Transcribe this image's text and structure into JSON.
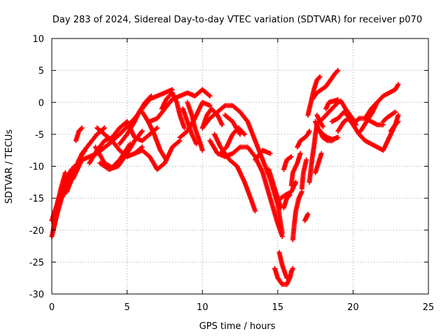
{
  "chart_data": {
    "type": "scatter",
    "title": "Day 283 of 2024, Sidereal Day-to-day VTEC variation (SDTVAR) for receiver p070",
    "xlabel": "GPS time / hours",
    "ylabel": "SDTVAR / TECUs",
    "xlim": [
      0,
      25
    ],
    "ylim": [
      -30,
      10
    ],
    "xticks": [
      0,
      5,
      10,
      15,
      20,
      25
    ],
    "yticks": [
      -30,
      -25,
      -20,
      -15,
      -10,
      -5,
      0,
      5,
      10
    ],
    "grid": true,
    "marker": "plus",
    "color": "#ff0000",
    "tracks": [
      [
        [
          0.0,
          -18.5
        ],
        [
          0.2,
          -17.0
        ],
        [
          0.5,
          -15.0
        ],
        [
          0.9,
          -12.5
        ],
        [
          1.3,
          -10.5
        ]
      ],
      [
        [
          0.0,
          -21.0
        ],
        [
          0.3,
          -18.0
        ],
        [
          0.7,
          -14.5
        ],
        [
          1.1,
          -12.0
        ],
        [
          1.5,
          -10.0
        ]
      ],
      [
        [
          0.1,
          -20.0
        ],
        [
          0.3,
          -16.5
        ],
        [
          0.6,
          -13.5
        ],
        [
          0.9,
          -11.0
        ]
      ],
      [
        [
          0.2,
          -19.0
        ],
        [
          0.4,
          -15.5
        ],
        [
          0.8,
          -13.0
        ],
        [
          1.2,
          -11.5
        ],
        [
          1.6,
          -10.5
        ]
      ],
      [
        [
          0.4,
          -16.0
        ],
        [
          0.9,
          -14.0
        ],
        [
          1.3,
          -12.0
        ],
        [
          1.8,
          -9.0
        ],
        [
          2.2,
          -7.5
        ]
      ],
      [
        [
          1.0,
          -14.0
        ],
        [
          1.5,
          -11.0
        ],
        [
          2.0,
          -8.0
        ],
        [
          2.5,
          -6.5
        ],
        [
          3.0,
          -5.0
        ],
        [
          3.5,
          -4.0
        ]
      ],
      [
        [
          1.6,
          -6.0
        ],
        [
          1.8,
          -4.5
        ],
        [
          2.0,
          -4.0
        ]
      ],
      [
        [
          1.4,
          -12.0
        ],
        [
          2.0,
          -9.0
        ],
        [
          2.5,
          -8.5
        ],
        [
          3.0,
          -8.0
        ],
        [
          3.8,
          -6.5
        ],
        [
          4.5,
          -5.0
        ],
        [
          5.0,
          -3.8
        ],
        [
          5.5,
          -2.5
        ],
        [
          6.0,
          -1.0
        ],
        [
          6.5,
          0.5
        ],
        [
          7.0,
          1.0
        ],
        [
          7.5,
          1.5
        ],
        [
          8.0,
          2.0
        ]
      ],
      [
        [
          2.5,
          -9.5
        ],
        [
          3.0,
          -7.5
        ],
        [
          3.5,
          -6.0
        ],
        [
          4.0,
          -5.5
        ],
        [
          4.5,
          -4.0
        ],
        [
          5.0,
          -3.0
        ],
        [
          5.5,
          -5.5
        ],
        [
          6.0,
          -6.0
        ],
        [
          6.5,
          -5.0
        ],
        [
          7.0,
          -4.0
        ]
      ],
      [
        [
          3.0,
          -4.0
        ],
        [
          3.5,
          -5.0
        ],
        [
          4.0,
          -6.0
        ],
        [
          4.5,
          -7.5
        ],
        [
          5.0,
          -8.5
        ],
        [
          5.5,
          -8.0
        ],
        [
          6.0,
          -7.0
        ]
      ],
      [
        [
          3.2,
          -9.5
        ],
        [
          3.8,
          -10.5
        ],
        [
          4.4,
          -10.0
        ],
        [
          5.0,
          -8.0
        ],
        [
          5.5,
          -6.0
        ],
        [
          6.0,
          -4.5
        ]
      ],
      [
        [
          2.9,
          -7.0
        ],
        [
          3.5,
          -9.5
        ],
        [
          4.0,
          -10.2
        ],
        [
          4.5,
          -9.0
        ],
        [
          5.2,
          -6.5
        ]
      ],
      [
        [
          4.5,
          -6.5
        ],
        [
          5.0,
          -5.0
        ],
        [
          5.5,
          -3.0
        ],
        [
          5.8,
          -1.5
        ],
        [
          6.2,
          0.0
        ],
        [
          6.6,
          1.0
        ]
      ],
      [
        [
          5.5,
          -8.0
        ],
        [
          6.0,
          -7.5
        ],
        [
          6.5,
          -8.5
        ],
        [
          7.0,
          -10.5
        ],
        [
          7.5,
          -9.5
        ],
        [
          8.0,
          -7.0
        ],
        [
          8.5,
          -6.0
        ]
      ],
      [
        [
          6.0,
          -1.5
        ],
        [
          6.4,
          -3.0
        ],
        [
          6.8,
          -5.0
        ],
        [
          7.2,
          -7.5
        ],
        [
          7.6,
          -9.0
        ]
      ],
      [
        [
          6.5,
          -3.0
        ],
        [
          7.0,
          -2.5
        ],
        [
          7.5,
          -1.0
        ],
        [
          8.0,
          0.5
        ],
        [
          8.5,
          1.0
        ],
        [
          9.0,
          1.5
        ],
        [
          9.5,
          1.0
        ],
        [
          10.0,
          2.0
        ],
        [
          10.5,
          1.0
        ]
      ],
      [
        [
          7.3,
          -1.0
        ],
        [
          7.6,
          0.5
        ],
        [
          8.0,
          1.5
        ],
        [
          8.3,
          0.0
        ],
        [
          8.5,
          -2.0
        ],
        [
          8.8,
          -4.0
        ]
      ],
      [
        [
          8.5,
          -5.5
        ],
        [
          9.0,
          -4.5
        ],
        [
          9.5,
          -2.5
        ],
        [
          10.0,
          0.0
        ],
        [
          10.5,
          -0.5
        ]
      ],
      [
        [
          9.0,
          0.0
        ],
        [
          9.3,
          -2.0
        ],
        [
          9.5,
          -4.0
        ],
        [
          9.8,
          -6.0
        ],
        [
          10.0,
          -7.5
        ]
      ],
      [
        [
          8.7,
          -1.0
        ],
        [
          9.0,
          -3.0
        ],
        [
          9.3,
          -5.0
        ],
        [
          9.6,
          -6.5
        ]
      ],
      [
        [
          10.0,
          -4.0
        ],
        [
          10.5,
          -2.5
        ],
        [
          11.0,
          -1.5
        ],
        [
          11.5,
          -0.5
        ],
        [
          12.0,
          -0.5
        ],
        [
          12.5,
          -1.5
        ],
        [
          13.0,
          -3.0
        ],
        [
          13.5,
          -6.0
        ],
        [
          14.0,
          -9.0
        ],
        [
          14.5,
          -12.0
        ],
        [
          15.0,
          -16.0
        ],
        [
          15.3,
          -20.5
        ]
      ],
      [
        [
          10.0,
          -4.0
        ],
        [
          10.3,
          -2.0
        ],
        [
          10.6,
          -1.0
        ],
        [
          11.0,
          -2.0
        ],
        [
          11.3,
          -3.5
        ]
      ],
      [
        [
          10.5,
          -6.0
        ],
        [
          11.0,
          -8.0
        ],
        [
          11.5,
          -8.5
        ],
        [
          12.0,
          -8.0
        ],
        [
          12.5,
          -7.0
        ],
        [
          13.0,
          -7.0
        ],
        [
          13.5,
          -8.5
        ],
        [
          14.0,
          -11.0
        ],
        [
          14.5,
          -15.0
        ],
        [
          15.0,
          -19.0
        ],
        [
          15.3,
          -21.0
        ]
      ],
      [
        [
          10.8,
          -5.0
        ],
        [
          11.2,
          -7.0
        ],
        [
          11.8,
          -9.0
        ],
        [
          12.3,
          -10.0
        ],
        [
          12.8,
          -12.5
        ],
        [
          13.2,
          -15.0
        ],
        [
          13.5,
          -17.0
        ]
      ],
      [
        [
          11.2,
          -8.0
        ],
        [
          11.6,
          -7.0
        ],
        [
          12.0,
          -5.0
        ],
        [
          12.4,
          -4.0
        ],
        [
          12.8,
          -5.0
        ]
      ],
      [
        [
          11.5,
          -2.0
        ],
        [
          12.0,
          -3.0
        ],
        [
          12.5,
          -5.0
        ]
      ],
      [
        [
          13.5,
          -9.0
        ],
        [
          14.0,
          -7.5
        ],
        [
          14.5,
          -8.0
        ]
      ],
      [
        [
          14.4,
          -10.5
        ],
        [
          14.8,
          -13.5
        ],
        [
          15.2,
          -16.5
        ]
      ],
      [
        [
          15.1,
          -23.5
        ],
        [
          15.3,
          -25.5
        ],
        [
          15.6,
          -27.5
        ]
      ],
      [
        [
          14.8,
          -26.0
        ],
        [
          15.0,
          -27.5
        ],
        [
          15.3,
          -28.5
        ],
        [
          15.6,
          -28.5
        ],
        [
          15.8,
          -27.5
        ],
        [
          15.9,
          -26.5
        ],
        [
          16.0,
          -26.0
        ]
      ],
      [
        [
          15.2,
          -15.0
        ],
        [
          15.5,
          -14.5
        ],
        [
          15.9,
          -14.0
        ],
        [
          16.1,
          -13.0
        ],
        [
          16.2,
          -12.5
        ]
      ],
      [
        [
          15.4,
          -16.5
        ],
        [
          15.6,
          -15.0
        ],
        [
          15.8,
          -14.5
        ]
      ],
      [
        [
          15.4,
          -10.5
        ],
        [
          15.6,
          -9.0
        ],
        [
          15.9,
          -8.5
        ]
      ],
      [
        [
          15.9,
          -13.0
        ],
        [
          16.0,
          -11.0
        ],
        [
          16.3,
          -9.5
        ],
        [
          16.5,
          -8.0
        ]
      ],
      [
        [
          16.0,
          -21.5
        ],
        [
          16.1,
          -19.0
        ],
        [
          16.2,
          -17.0
        ],
        [
          16.4,
          -15.0
        ],
        [
          16.6,
          -14.0
        ]
      ],
      [
        [
          16.6,
          -13.5
        ],
        [
          16.7,
          -11.0
        ],
        [
          16.9,
          -9.0
        ]
      ],
      [
        [
          16.3,
          -7.0
        ],
        [
          16.5,
          -6.0
        ],
        [
          16.8,
          -5.5
        ],
        [
          17.0,
          -5.0
        ],
        [
          17.1,
          -4.5
        ]
      ],
      [
        [
          16.8,
          -18.5
        ],
        [
          16.9,
          -18.0
        ],
        [
          17.0,
          -17.5
        ]
      ],
      [
        [
          17.1,
          -12.5
        ],
        [
          17.2,
          -10.5
        ],
        [
          17.3,
          -8.5
        ],
        [
          17.4,
          -7.0
        ],
        [
          17.5,
          -5.0
        ],
        [
          17.6,
          -3.5
        ]
      ],
      [
        [
          17.5,
          -11.0
        ],
        [
          17.7,
          -9.5
        ],
        [
          17.9,
          -8.0
        ]
      ],
      [
        [
          17.0,
          -2.0
        ],
        [
          17.2,
          0.0
        ],
        [
          17.4,
          2.0
        ],
        [
          17.6,
          3.5
        ],
        [
          17.8,
          4.0
        ]
      ],
      [
        [
          17.3,
          0.5
        ],
        [
          17.6,
          1.5
        ],
        [
          17.9,
          2.0
        ],
        [
          18.2,
          2.5
        ],
        [
          18.5,
          3.5
        ],
        [
          18.8,
          4.5
        ],
        [
          19.0,
          5.0
        ]
      ],
      [
        [
          17.6,
          -2.0
        ],
        [
          17.8,
          -3.0
        ],
        [
          18.0,
          -3.8
        ]
      ],
      [
        [
          17.8,
          -4.5
        ],
        [
          18.0,
          -5.5
        ],
        [
          18.3,
          -6.0
        ],
        [
          18.6,
          -6.0
        ],
        [
          18.9,
          -5.5
        ]
      ],
      [
        [
          17.5,
          -3.0
        ],
        [
          17.7,
          -4.2
        ],
        [
          18.0,
          -5.0
        ],
        [
          18.3,
          -5.5
        ],
        [
          18.6,
          -5.8
        ],
        [
          19.0,
          -5.5
        ]
      ],
      [
        [
          18.2,
          -1.0
        ],
        [
          18.4,
          0.0
        ],
        [
          18.7,
          0.2
        ],
        [
          19.0,
          0.4
        ]
      ],
      [
        [
          17.8,
          -3.0
        ],
        [
          18.2,
          -2.0
        ],
        [
          18.6,
          -1.0
        ],
        [
          19.0,
          0.0
        ],
        [
          19.2,
          0.2
        ],
        [
          19.5,
          -1.0
        ],
        [
          19.8,
          -2.0
        ],
        [
          20.1,
          -3.0
        ]
      ],
      [
        [
          18.6,
          -3.0
        ],
        [
          19.0,
          -2.5
        ],
        [
          19.4,
          -1.5
        ],
        [
          19.8,
          -2.5
        ],
        [
          20.2,
          -3.5
        ]
      ],
      [
        [
          19.0,
          -4.5
        ],
        [
          19.4,
          -3.0
        ],
        [
          19.7,
          -2.5
        ],
        [
          20.0,
          -3.5
        ],
        [
          20.4,
          -5.0
        ],
        [
          20.8,
          -6.0
        ],
        [
          21.2,
          -6.5
        ],
        [
          21.6,
          -7.0
        ],
        [
          22.0,
          -7.5
        ],
        [
          22.4,
          -5.5
        ],
        [
          22.8,
          -3.5
        ],
        [
          23.0,
          -2.0
        ]
      ],
      [
        [
          20.0,
          -3.5
        ],
        [
          20.4,
          -2.5
        ],
        [
          20.8,
          -2.5
        ],
        [
          21.2,
          -3.0
        ],
        [
          21.6,
          -3.5
        ],
        [
          22.0,
          -3.5
        ]
      ],
      [
        [
          20.5,
          -4.5
        ],
        [
          20.9,
          -3.0
        ],
        [
          21.3,
          -1.5
        ],
        [
          21.6,
          0.0
        ],
        [
          22.0,
          1.0
        ],
        [
          22.4,
          1.5
        ],
        [
          22.8,
          2.0
        ],
        [
          23.0,
          2.8
        ]
      ],
      [
        [
          20.8,
          -2.5
        ],
        [
          21.2,
          -1.0
        ],
        [
          21.6,
          0.0
        ]
      ],
      [
        [
          22.0,
          -3.0
        ],
        [
          22.2,
          -2.5
        ],
        [
          22.5,
          -2.0
        ],
        [
          22.8,
          -1.5
        ]
      ],
      [
        [
          22.5,
          -4.5
        ],
        [
          22.8,
          -3.5
        ],
        [
          23.0,
          -3.0
        ]
      ]
    ]
  }
}
